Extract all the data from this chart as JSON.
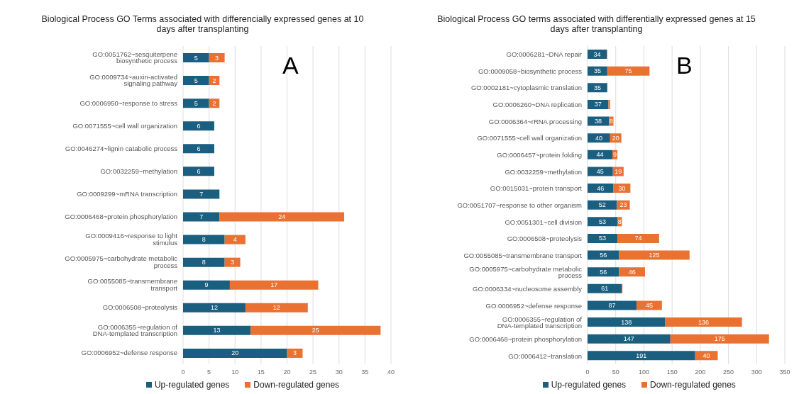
{
  "chart_data": [
    {
      "type": "bar",
      "orientation": "horizontal",
      "stacked": true,
      "title": "Biological Process GO Terms associated with differencially expressed genes  at 10 days after transplanting",
      "annotations": [
        "A"
      ],
      "categories": [
        "GO:0051762~sesquiterpene biosynthetic process",
        "GO:0009734~auxin-activated signaling pathway",
        "GO:0006950~response to stress",
        "GO:0071555~cell wall organization",
        "GO:0046274~lignin catabolic process",
        "GO:0032259~methylation",
        "GO:0009299~mRNA transcription",
        "GO:0006468~protein phosphorylation",
        "GO:0009416~response to light stimulus",
        "GO:0005975~carbohydrate metabolic process",
        "GO:0055085~transmembrane transport",
        "GO:0006508~proteolysis",
        "GO:0006355~regulation of DNA-templated transcription",
        "GO:0006952~defense response"
      ],
      "series": [
        {
          "name": "Up-regulated genes",
          "color": "#1a5e80",
          "values": [
            5,
            5,
            5,
            6,
            6,
            6,
            7,
            7,
            8,
            8,
            9,
            12,
            13,
            20
          ]
        },
        {
          "name": "Down-regulated genes",
          "color": "#e97132",
          "values": [
            3,
            2,
            2,
            null,
            null,
            null,
            null,
            24,
            4,
            3,
            17,
            12,
            25,
            3
          ]
        }
      ],
      "xlim": [
        0,
        40
      ],
      "xticks": [
        0,
        5,
        10,
        15,
        20,
        25,
        30,
        35,
        40
      ],
      "grid": "x",
      "legend": "bottom",
      "data_labels": true
    },
    {
      "type": "bar",
      "orientation": "horizontal",
      "stacked": true,
      "title": "Biological Process GO terms associated with differentially expressed genes  at 15 days after transplanting",
      "annotations": [
        "B"
      ],
      "categories": [
        "GO:0006281~DNA repair",
        "GO:0009058~biosynthetic process",
        "GO:0002181~cytoplasmic translation",
        "GO:0006260~DNA replication",
        "GO:0006364~rRNA processing",
        "GO:0071555~cell wall organization",
        "GO:0006457~protein folding",
        "GO:0032259~methylation",
        "GO:0015031~protein transport",
        "GO:0051707~response to other organism",
        "GO:0051301~cell division",
        "GO:0006508~proteolysis",
        "GO:0055085~transmembrane transport",
        "GO:0005975~carbohydrate metabolic process",
        "GO:0006334~nucleosome assembly",
        "GO:0006952~defense response",
        "GO:0006355~regulation of DNA-templated transcription",
        "GO:0006468~protein phosphorylation",
        "GO:0006412~translation"
      ],
      "series": [
        {
          "name": "Up-regulated genes",
          "color": "#1a5e80",
          "values": [
            34,
            35,
            35,
            37,
            38,
            40,
            44,
            45,
            46,
            52,
            53,
            53,
            56,
            56,
            61,
            87,
            138,
            147,
            191
          ],
          "value_labels": [
            "34",
            "35",
            "35",
            "37",
            "38",
            "40",
            "44",
            "45",
            "46",
            "52",
            "53",
            "53",
            "56",
            "56",
            "61",
            "87",
            "138",
            "147",
            "191"
          ]
        },
        {
          "name": "Down-regulated genes",
          "color": "#e97132",
          "values": [
            1,
            75,
            null,
            3,
            8,
            20,
            9,
            19,
            30,
            23,
            8,
            74,
            125,
            46,
            1,
            45,
            136,
            175,
            40
          ],
          "value_labels": [
            null,
            "75",
            null,
            null,
            "8",
            "20",
            "9",
            "19",
            "30",
            "23",
            "8",
            "74",
            "125",
            "46",
            null,
            "45",
            "136",
            "175",
            "40"
          ]
        }
      ],
      "xlim": [
        0,
        350
      ],
      "xticks": [
        0,
        50,
        100,
        150,
        200,
        250,
        300,
        350
      ],
      "grid": "x",
      "legend": "bottom"
    }
  ]
}
